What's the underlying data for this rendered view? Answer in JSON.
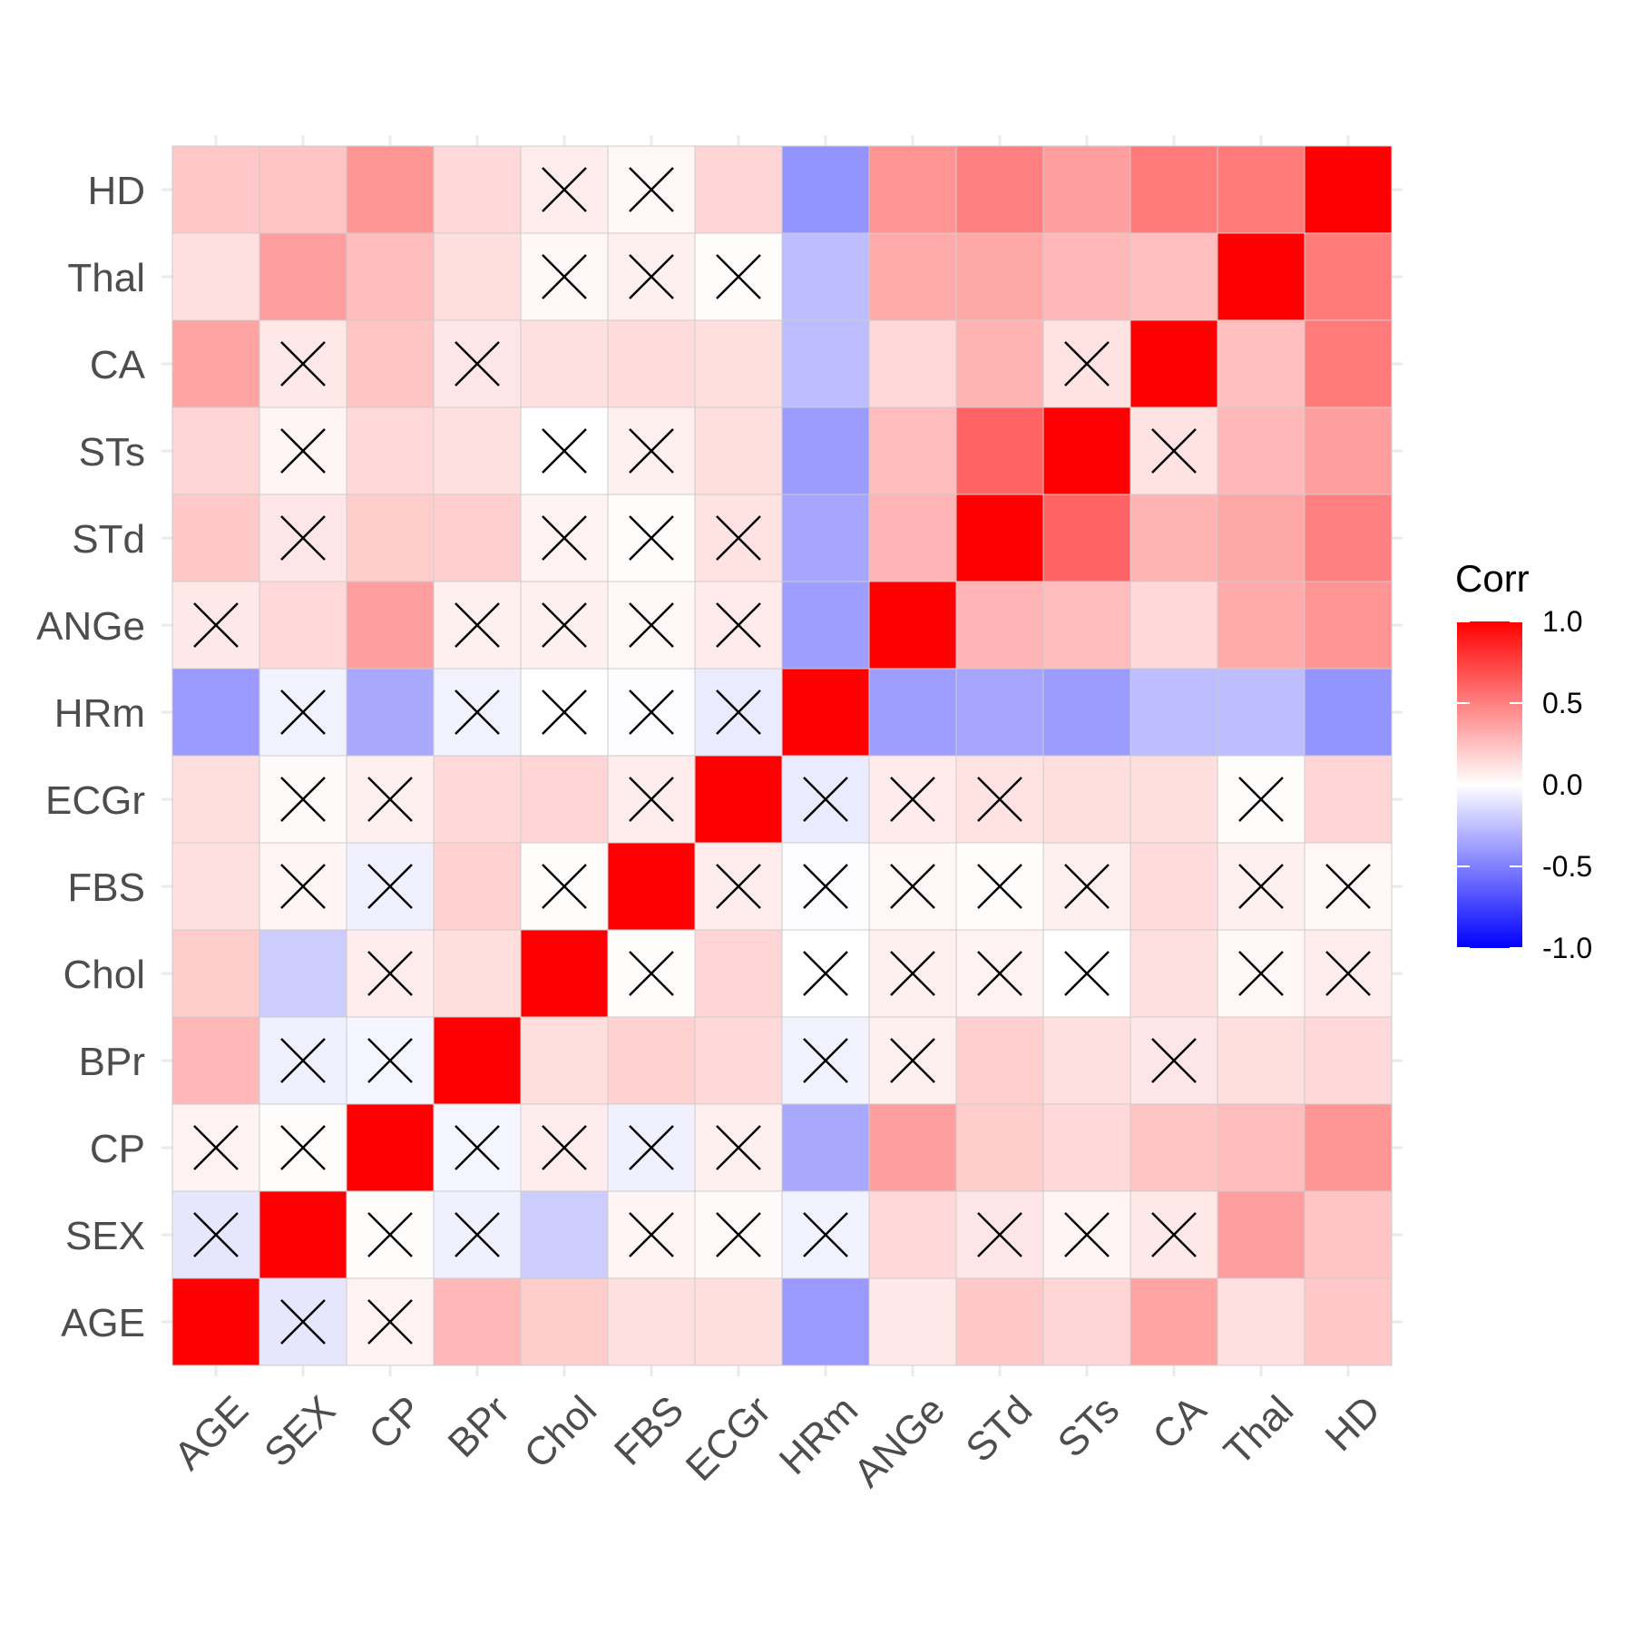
{
  "chart_data": {
    "type": "heatmap",
    "title": "",
    "xlabel": "",
    "ylabel": "",
    "variables": [
      "AGE",
      "SEX",
      "CP",
      "BPr",
      "Chol",
      "FBS",
      "ECGr",
      "HRm",
      "ANGe",
      "STd",
      "STs",
      "CA",
      "Thal",
      "HD"
    ],
    "matrix": [
      [
        1.0,
        -0.1,
        0.05,
        0.28,
        0.2,
        0.12,
        0.13,
        -0.4,
        0.09,
        0.21,
        0.16,
        0.36,
        0.12,
        0.22
      ],
      [
        -0.1,
        1.0,
        0.01,
        -0.06,
        -0.2,
        0.04,
        0.02,
        -0.05,
        0.15,
        0.1,
        0.04,
        0.09,
        0.38,
        0.23
      ],
      [
        0.05,
        0.01,
        1.0,
        -0.04,
        0.07,
        -0.06,
        0.06,
        -0.34,
        0.38,
        0.2,
        0.15,
        0.23,
        0.26,
        0.41
      ],
      [
        0.28,
        -0.06,
        -0.04,
        1.0,
        0.13,
        0.18,
        0.15,
        -0.05,
        0.06,
        0.19,
        0.12,
        0.1,
        0.13,
        0.15
      ],
      [
        0.2,
        -0.2,
        0.07,
        0.13,
        1.0,
        0.01,
        0.17,
        -0.0,
        0.06,
        0.05,
        0.0,
        0.12,
        0.03,
        0.07
      ],
      [
        0.12,
        0.04,
        -0.06,
        0.18,
        0.01,
        1.0,
        0.07,
        -0.01,
        0.03,
        0.01,
        0.06,
        0.14,
        0.06,
        0.03
      ],
      [
        0.13,
        0.02,
        0.06,
        0.15,
        0.17,
        0.07,
        1.0,
        -0.08,
        0.08,
        0.11,
        0.13,
        0.13,
        0.01,
        0.17
      ],
      [
        -0.4,
        -0.05,
        -0.34,
        -0.05,
        -0.0,
        -0.01,
        -0.08,
        1.0,
        -0.38,
        -0.35,
        -0.39,
        -0.26,
        -0.26,
        -0.42
      ],
      [
        0.09,
        0.15,
        0.38,
        0.06,
        0.06,
        0.03,
        0.08,
        -0.38,
        1.0,
        0.29,
        0.26,
        0.15,
        0.33,
        0.42
      ],
      [
        0.21,
        0.1,
        0.2,
        0.19,
        0.05,
        0.01,
        0.11,
        -0.35,
        0.29,
        1.0,
        0.61,
        0.3,
        0.34,
        0.5
      ],
      [
        0.16,
        0.04,
        0.15,
        0.12,
        0.0,
        0.06,
        0.13,
        -0.39,
        0.26,
        0.61,
        1.0,
        0.11,
        0.28,
        0.38
      ],
      [
        0.36,
        0.09,
        0.23,
        0.1,
        0.12,
        0.14,
        0.13,
        -0.26,
        0.15,
        0.3,
        0.11,
        1.0,
        0.25,
        0.52
      ],
      [
        0.12,
        0.38,
        0.26,
        0.13,
        0.03,
        0.06,
        0.01,
        -0.26,
        0.33,
        0.34,
        0.28,
        0.25,
        1.0,
        0.52
      ],
      [
        0.22,
        0.23,
        0.41,
        0.15,
        0.07,
        0.03,
        0.17,
        -0.42,
        0.42,
        0.5,
        0.38,
        0.52,
        0.52,
        1.0
      ]
    ],
    "insignificant": [
      [
        0,
        1
      ],
      [
        0,
        2
      ],
      [
        1,
        0
      ],
      [
        1,
        2
      ],
      [
        1,
        3
      ],
      [
        1,
        5
      ],
      [
        1,
        6
      ],
      [
        1,
        7
      ],
      [
        1,
        9
      ],
      [
        1,
        10
      ],
      [
        1,
        11
      ],
      [
        2,
        0
      ],
      [
        2,
        1
      ],
      [
        2,
        3
      ],
      [
        2,
        4
      ],
      [
        2,
        5
      ],
      [
        2,
        6
      ],
      [
        3,
        1
      ],
      [
        3,
        2
      ],
      [
        3,
        7
      ],
      [
        3,
        8
      ],
      [
        3,
        11
      ],
      [
        4,
        2
      ],
      [
        4,
        5
      ],
      [
        4,
        7
      ],
      [
        4,
        8
      ],
      [
        4,
        9
      ],
      [
        4,
        10
      ],
      [
        4,
        12
      ],
      [
        4,
        13
      ],
      [
        5,
        1
      ],
      [
        5,
        2
      ],
      [
        5,
        4
      ],
      [
        5,
        6
      ],
      [
        5,
        7
      ],
      [
        5,
        8
      ],
      [
        5,
        9
      ],
      [
        5,
        10
      ],
      [
        5,
        12
      ],
      [
        5,
        13
      ],
      [
        6,
        1
      ],
      [
        6,
        2
      ],
      [
        6,
        5
      ],
      [
        6,
        7
      ],
      [
        6,
        8
      ],
      [
        6,
        9
      ],
      [
        6,
        12
      ],
      [
        7,
        1
      ],
      [
        7,
        3
      ],
      [
        7,
        4
      ],
      [
        7,
        5
      ],
      [
        7,
        6
      ],
      [
        8,
        0
      ],
      [
        8,
        3
      ],
      [
        8,
        4
      ],
      [
        8,
        5
      ],
      [
        8,
        6
      ],
      [
        9,
        1
      ],
      [
        9,
        4
      ],
      [
        9,
        5
      ],
      [
        9,
        6
      ],
      [
        10,
        1
      ],
      [
        10,
        4
      ],
      [
        10,
        5
      ],
      [
        10,
        11
      ],
      [
        11,
        1
      ],
      [
        11,
        3
      ],
      [
        11,
        10
      ],
      [
        12,
        4
      ],
      [
        12,
        5
      ],
      [
        12,
        6
      ],
      [
        13,
        4
      ],
      [
        13,
        5
      ]
    ],
    "legend": {
      "title": "Corr",
      "position": "right",
      "ticks": [
        1.0,
        0.5,
        0.0,
        -0.5,
        -1.0
      ],
      "tick_labels": [
        "1.0",
        "0.5",
        "0.0",
        "-0.5",
        "-1.0"
      ]
    },
    "colors": {
      "low": "#0000ff",
      "mid": "#ffffff",
      "high": "#ff0000",
      "border": "#cccccc",
      "cross": "#000000"
    },
    "grid": true
  }
}
